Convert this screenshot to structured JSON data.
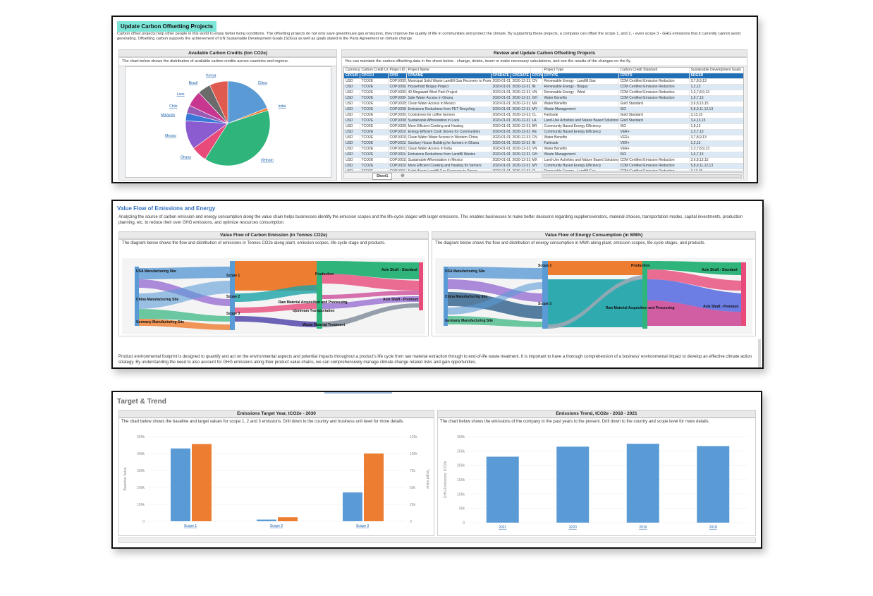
{
  "carbon": {
    "title": "Update Carbon Offsetting Projects",
    "intro": "Carbon offset projects help other people in this world to enjoy better living conditions. The offsetting projects do not only save greenhouse gas emissions, they improve the quality of life in communities and protect the climate. By supporting these projects, a company can offset the scope 1, and 2, - even scope 3 - GHG emissions that it currently cannot avoid generating. Offsetting carbon supports the achievement of UN Sustainable Development Goals (SDGs) as well as goals stated in the Paris Agreement on climate change.",
    "left_header": "Available Carbon Credits (ton CO2e)",
    "left_desc": "The chart below shows the distribution of available carbon credits across countries and regions.",
    "right_header": "Review and Update Carbon Offsetting Projects",
    "right_desc": "You can maintain the carbon offsetting data in the sheet below - change, delete, insert or make necessary calculations, and see the results of the changes on the fly.",
    "sheet_tab": "Sheet1",
    "add_tab": "⊕",
    "pie_labels": [
      "China",
      "India",
      "Vietnam",
      "Ghana",
      "Mexico",
      "Malaysia",
      "Chile",
      "Laos",
      "Brazil",
      "Kenya"
    ],
    "top_headers": [
      "Currency",
      "Carbon Credit Unit",
      "Project ID",
      "Project Name",
      "",
      "",
      "",
      "Project Type",
      "Carbon Credit Standard",
      "Sustainable Development Goals"
    ],
    "col_headers": [
      "CPCUR",
      "CPCCU",
      "CPID",
      "CPNAME",
      "CPSDATE",
      "CPEDATE",
      "CPCNTY",
      "CPTYPE",
      "CPSTD",
      "SDGSR"
    ],
    "rows": [
      [
        "USD",
        "TCO2E",
        "COP10001",
        "Municipal Solid Waste Landfill Gas Recovery to Power",
        "2020-01-01",
        "2030-12-31",
        "CN",
        "Renewable Energy - Landfill Gas",
        "CDM Certified Emission Reduction",
        "3,7,8,9,13"
      ],
      [
        "USD",
        "TCO2E",
        "COP10002",
        "Household Biogas Project",
        "2020-01-01",
        "2030-12-31",
        "IN",
        "Renewable Energy - Biogas",
        "CDM Certified Emission Reduction",
        "1,2,13"
      ],
      [
        "USD",
        "TCO2E",
        "COP10003",
        "40 Megawatt Wind Park Project",
        "2020-01-01",
        "2030-12-31",
        "VN",
        "Renewable Energy - Wind",
        "CDM Certified Emission Reduction",
        "1,3,7,8,9,13"
      ],
      [
        "USD",
        "TCO2E",
        "COP10004",
        "Safe Water Access in Ghana",
        "2020-01-01",
        "2030-12-31",
        "GH",
        "Water Benefits",
        "CDM Certified Emission Reduction",
        "1,6,7,13"
      ],
      [
        "USD",
        "TCO2E",
        "COP10005",
        "Clean Water Access in Mexico",
        "2020-01-01",
        "2030-12-31",
        "MX",
        "Water Benefits",
        "Gold Standard",
        "3,6,8,13,15"
      ],
      [
        "USD",
        "TCO2E",
        "COP10006",
        "Emissions Reductions from PET Recycling",
        "2020-01-01",
        "2030-12-31",
        "MY",
        "Waste Management",
        "ISO",
        "5,8,9,11,12,13"
      ],
      [
        "USD",
        "TCO2E",
        "COP10007",
        "Cookstoves for coffee farmers",
        "2020-01-01",
        "2030-12-31",
        "CL",
        "Fairtrade",
        "Gold Standard",
        "3,13,15"
      ],
      [
        "USD",
        "TCO2E",
        "COP10008",
        "Sustainable Afforestation in Laos",
        "2020-01-01",
        "2030-12-31",
        "LA",
        "Land-Use Activities and Nature Based Solutions",
        "Gold Standard",
        "3,4,13,15"
      ],
      [
        "USD",
        "TCO2E",
        "COP10009",
        "More Efficient Cooking and Heating",
        "2020-01-01",
        "2030-12-31",
        "BR",
        "Community Based Energy Efficiency",
        "ISO",
        "1,8,13"
      ],
      [
        "USD",
        "TCO2E",
        "COP10010",
        "Energy Efficient Cook Stoves for Communities",
        "2020-01-01",
        "2030-12-31",
        "KE",
        "Community Based Energy Efficiency",
        "VER+",
        "1,5,7,13"
      ],
      [
        "USD",
        "TCO2E",
        "COP10011",
        "Clean Water Water Access in Western China",
        "2020-01-01",
        "2030-12-31",
        "CN",
        "Water Benefits",
        "VER+",
        "3,7,8,9,13"
      ],
      [
        "USD",
        "TCO2E",
        "COP10012",
        "Sanitary House Building for farmers in Ghana",
        "2020-01-01",
        "2030-12-31",
        "IN",
        "Fairtrade",
        "VER+",
        "1,2,13"
      ],
      [
        "USD",
        "TCO2E",
        "COP10013",
        "Clean Water Access in India",
        "2020-01-01",
        "2030-12-31",
        "VN",
        "Water Benefits",
        "VER+",
        "1,3,7,8,9,13"
      ],
      [
        "USD",
        "TCO2E",
        "COP10014",
        "Emissions Reductions from Landfill Wastes",
        "2020-01-01",
        "2030-12-31",
        "GH",
        "Waste Management",
        "ISO",
        "1,6,7,13"
      ],
      [
        "USD",
        "TCO2E",
        "COP10015",
        "Sustainable Afforestation in Mexico",
        "2020-01-01",
        "2030-12-31",
        "MX",
        "Land-Use Activities and Nature Based Solutions",
        "CDM Certified Emission Reduction",
        "3,6,8,13,15"
      ],
      [
        "USD",
        "TCO2E",
        "COP10016",
        "More Efficient Cooking and Heating for farmers",
        "2020-01-01",
        "2030-12-31",
        "MY",
        "Community Based Energy Efficiency",
        "CDM Certified Emission Reduction",
        "5,8,9,11,12,13"
      ],
      [
        "USD",
        "TCO2E",
        "COP10017",
        "Solid Waste Landfill Gas Recovery to Power",
        "2020-01-01",
        "2030-12-31",
        "CL",
        "Renewable Energy - Landfill Gas",
        "CDM Certified Emission Reduction",
        "3,13,15"
      ]
    ]
  },
  "value_flow": {
    "title": "Value Flow of Emissions and Energy",
    "intro": "Analyzing the source of carbon emission and energy consumption along the value chain helps businesses identify the emission scopes and the life-cycle stages with larger emissions. This enables businesses to make better decisions regarding suppliers/vendors, material choices, transportation modes, capital investments, production planning, etc. to reduce their over GHG emissions, and optimize resources consumption.",
    "left_header": "Value Flow of Carbon Emission (in Tonnes CO2e)",
    "left_desc": "The diagram below shows the flow and distribution of emissions in Tonnes CO2e along plant, emission scopes, life-cycle stage and products.",
    "right_header": "Value Flow of Energy Consumption (in MWh)",
    "right_desc": "The diagram below shows the flow and distribution of energy consumption in MWh along plant, emission scopes, life-cycle stages, and products.",
    "left_nodes": [
      "USA Manufacturing Site",
      "China Manufacturing Site",
      "Germany Manufacturing Site",
      "Scope 1",
      "Scope 2",
      "Scope 3",
      "Production",
      "Raw Material Acquisition and Processing",
      "Upstream Transportation",
      "Waste Material Treatment",
      "Axle Shaft - Standard",
      "Axle Shaft - Premium"
    ],
    "right_nodes": [
      "USA Manufacturing Site",
      "China Manufacturing Site",
      "Germany Manufacturing Site",
      "Scope 2",
      "Scope 3",
      "Production",
      "Raw Material Acquisition and Processing",
      "Axle Shaft - Standard",
      "Axle Shaft - Premium"
    ],
    "footer": "Product environmental footprint is designed to quantify and act on the environmental aspects and potential impacts throughout a product's life cycle from raw material extraction through to end-of-life waste treatment. It is important to have a thorough comprehension of a business' environmental impact to develop an effective climate action strategy. By understanding the need to also account for GHG emissions along their product value chains, we can comprehensively manage climate change related risks and gain opportunities."
  },
  "target": {
    "title": "Target & Trend",
    "left_header": "Emissions Target Year, tCO2e - 2030",
    "left_desc": "The chart below shows the baseline and target values for scope 1, 2 and 3 emissions. Drill down to the country and business unit level for more details.",
    "right_header": "Emissions Trend, tCO2e - 2018 - 2021",
    "right_desc": "The chart below shows the emissions of the company in the past years to the present. Drill down to the country and scope level for more details."
  },
  "chart_data": [
    {
      "type": "pie",
      "title": "",
      "categories": [
        "China",
        "India",
        "Vietnam",
        "Ghana",
        "Mexico",
        "Malaysia",
        "Chile",
        "Laos",
        "Brazil",
        "Kenya"
      ],
      "values": [
        19,
        1,
        39,
        6,
        11,
        3,
        3,
        6,
        5,
        7
      ],
      "colors": [
        "#5b9bd5",
        "#ed7d31",
        "#2fb47c",
        "#e84a7a",
        "#8b5ccf",
        "#3a78d8",
        "#9b59b6",
        "#c8378f",
        "#6b6b6b",
        "#e05a4f"
      ]
    },
    {
      "type": "bar",
      "title": "",
      "categories": [
        "Scope 1",
        "Scope 2",
        "Scope 3"
      ],
      "series": [
        {
          "name": "Baseline Value",
          "values": [
            430000,
            10000,
            170000
          ]
        },
        {
          "name": "Target Value",
          "values": [
            114000,
            6000,
            100000
          ]
        }
      ],
      "ylabel": "Baseline Value",
      "y2label": "Target Value",
      "ylim": [
        0,
        500000
      ],
      "y2lim": [
        0,
        125000
      ],
      "yticks": [
        "0",
        "100k",
        "200k",
        "300k",
        "400k",
        "500k"
      ],
      "y2ticks": [
        "0",
        "25k",
        "50k",
        "75k",
        "100k",
        "125k"
      ]
    },
    {
      "type": "bar",
      "title": "",
      "categories": [
        "2021",
        "2020",
        "2019",
        "2018"
      ],
      "values": [
        230000,
        265000,
        275000,
        267000
      ],
      "ylabel": "GHG Emissions, tCO2e",
      "ylim": [
        0,
        300000
      ],
      "yticks": [
        "0",
        "50k",
        "100k",
        "150k",
        "200k",
        "250k",
        "300k"
      ]
    }
  ]
}
